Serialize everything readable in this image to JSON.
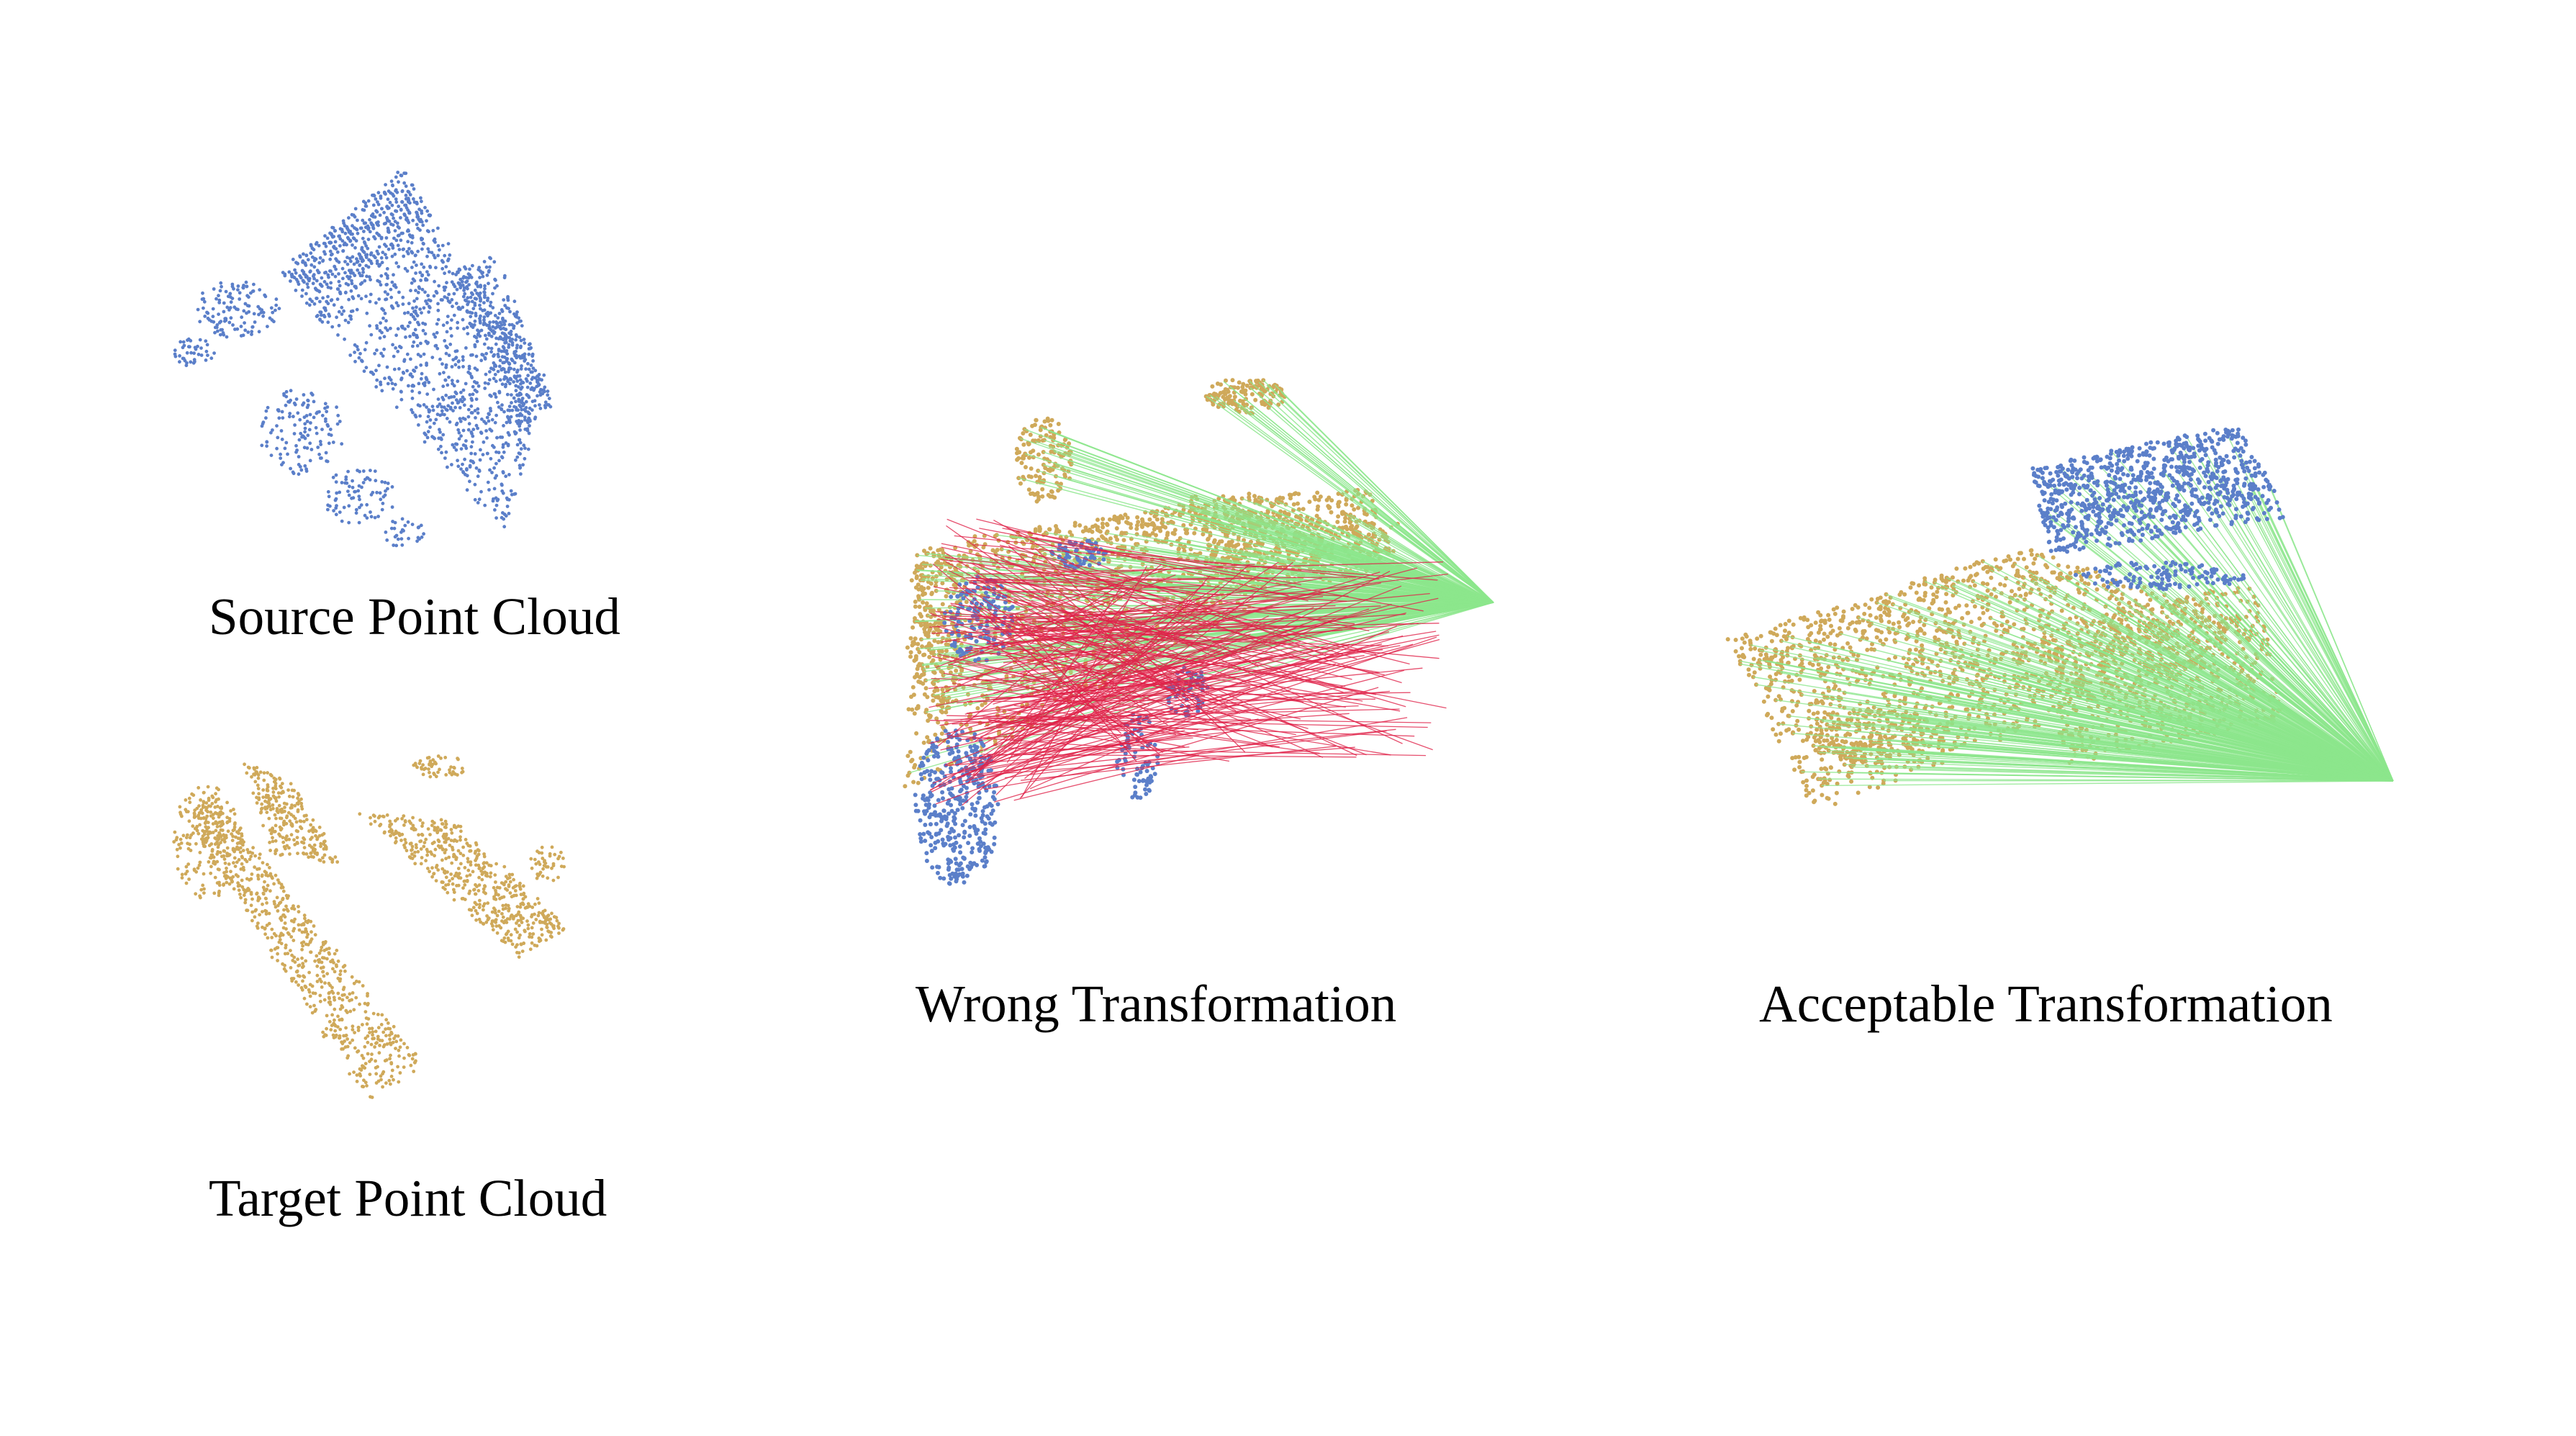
{
  "colors": {
    "source": "#5b7fc9",
    "target": "#cfa95a",
    "inlier": "#8ce68c",
    "outlier": "#e0234a",
    "background": "#ffffff"
  },
  "panels": {
    "source": {
      "caption": "Source Point Cloud"
    },
    "target": {
      "caption": "Target Point Cloud"
    },
    "wrong": {
      "caption": "Wrong Transformation"
    },
    "acceptable": {
      "caption": "Acceptable Transformation"
    }
  }
}
